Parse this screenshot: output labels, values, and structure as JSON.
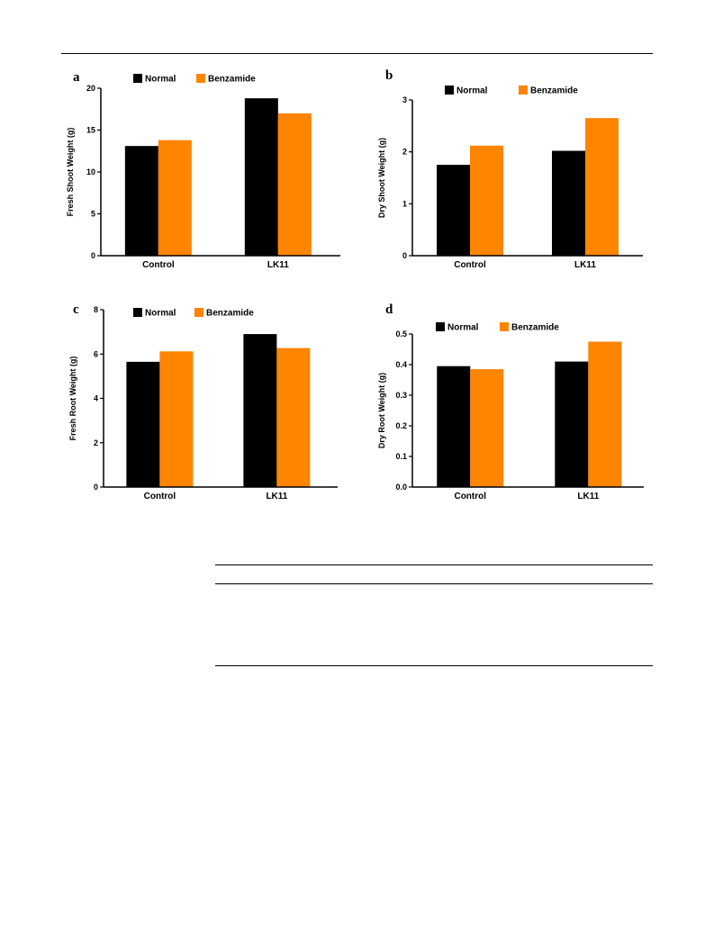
{
  "chart_data": [
    {
      "type": "bar",
      "panel": "a",
      "categories": [
        "Control",
        "LK11"
      ],
      "series": [
        {
          "name": "Normal",
          "values": [
            13.1,
            18.8
          ]
        },
        {
          "name": "Benzamide",
          "values": [
            13.8,
            17.0
          ]
        }
      ],
      "ylabel": "Fresh Shoot Weight (g)",
      "xlabel": "",
      "ylim": [
        0,
        20
      ],
      "yticks": [
        0,
        5,
        10,
        15,
        20
      ],
      "ytick_labels": [
        "0",
        "5",
        "10",
        "15",
        "20"
      ],
      "legend_position": "top",
      "grid": false
    },
    {
      "type": "bar",
      "panel": "b",
      "categories": [
        "Control",
        "LK11"
      ],
      "series": [
        {
          "name": "Normal",
          "values": [
            1.75,
            2.02
          ]
        },
        {
          "name": "Benzamide",
          "values": [
            2.12,
            2.65
          ]
        }
      ],
      "ylabel": "Dry Shoot Weight (g)",
      "xlabel": "",
      "ylim": [
        0,
        3
      ],
      "yticks": [
        0,
        1,
        2,
        3
      ],
      "ytick_labels": [
        "0",
        "1",
        "2",
        "3"
      ],
      "legend_position": "top",
      "grid": false
    },
    {
      "type": "bar",
      "panel": "c",
      "categories": [
        "Control",
        "LK11"
      ],
      "series": [
        {
          "name": "Normal",
          "values": [
            5.65,
            6.9
          ]
        },
        {
          "name": "Benzamide",
          "values": [
            6.12,
            6.27
          ]
        }
      ],
      "ylabel": "Fresh Root Weight (g)",
      "xlabel": "",
      "ylim": [
        0,
        8
      ],
      "yticks": [
        0,
        2,
        4,
        6,
        8
      ],
      "ytick_labels": [
        "0",
        "2",
        "4",
        "6",
        "8"
      ],
      "legend_position": "top",
      "grid": false
    },
    {
      "type": "bar",
      "panel": "d",
      "categories": [
        "Control",
        "LK11"
      ],
      "series": [
        {
          "name": "Normal",
          "values": [
            0.395,
            0.41
          ]
        },
        {
          "name": "Benzamide",
          "values": [
            0.385,
            0.475
          ]
        }
      ],
      "ylabel": "Dry Root Weight (g)",
      "xlabel": "",
      "ylim": [
        0,
        0.5
      ],
      "yticks": [
        0,
        0.1,
        0.2,
        0.3,
        0.4,
        0.5
      ],
      "ytick_labels": [
        "0.0",
        "0.1",
        "0.2",
        "0.3",
        "0.4",
        "0.5"
      ],
      "legend_position": "top",
      "grid": false
    }
  ],
  "colors": {
    "Normal": "#000000",
    "Benzamide": "#ff8400"
  }
}
